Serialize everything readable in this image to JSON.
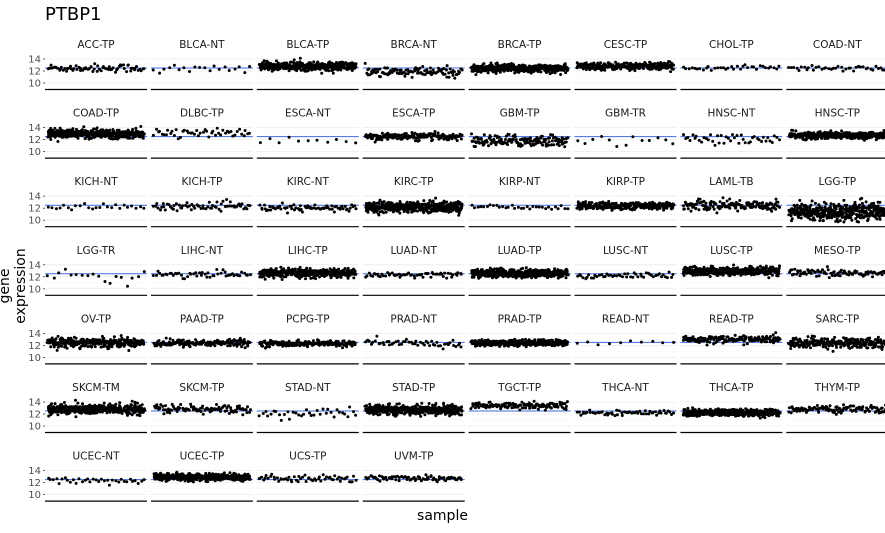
{
  "chart_data": {
    "type": "scatter",
    "title": "PTBP1",
    "xlabel": "sample",
    "ylabel": "gene expression",
    "y_ticks": [
      "10",
      "12",
      "14"
    ],
    "ylim": [
      9.5,
      14.5
    ],
    "reference_line_color": "#4169e1",
    "point_color": "#000000",
    "panels": [
      {
        "name": "ACC-TP",
        "mean": 12.5,
        "spread": 0.35,
        "n": 70
      },
      {
        "name": "BLCA-NT",
        "mean": 12.2,
        "spread": 0.5,
        "n": 20
      },
      {
        "name": "BLCA-TP",
        "mean": 12.8,
        "spread": 0.35,
        "n": 400
      },
      {
        "name": "BRCA-NT",
        "mean": 11.8,
        "spread": 0.45,
        "n": 110
      },
      {
        "name": "BRCA-TP",
        "mean": 12.4,
        "spread": 0.35,
        "n": 1000
      },
      {
        "name": "CESC-TP",
        "mean": 12.8,
        "spread": 0.3,
        "n": 300
      },
      {
        "name": "CHOL-TP",
        "mean": 12.6,
        "spread": 0.25,
        "n": 35
      },
      {
        "name": "COAD-NT",
        "mean": 12.5,
        "spread": 0.25,
        "n": 40
      },
      {
        "name": "COAD-TP",
        "mean": 13.0,
        "spread": 0.35,
        "n": 450
      },
      {
        "name": "DLBC-TP",
        "mean": 13.1,
        "spread": 0.3,
        "n": 48
      },
      {
        "name": "ESCA-NT",
        "mean": 11.8,
        "spread": 0.35,
        "n": 11
      },
      {
        "name": "ESCA-TP",
        "mean": 12.5,
        "spread": 0.3,
        "n": 180
      },
      {
        "name": "GBM-TP",
        "mean": 11.8,
        "spread": 0.5,
        "n": 160
      },
      {
        "name": "GBM-TR",
        "mean": 11.8,
        "spread": 0.5,
        "n": 13
      },
      {
        "name": "HNSC-NT",
        "mean": 12.1,
        "spread": 0.4,
        "n": 44
      },
      {
        "name": "HNSC-TP",
        "mean": 12.7,
        "spread": 0.3,
        "n": 500
      },
      {
        "name": "KICH-NT",
        "mean": 12.2,
        "spread": 0.3,
        "n": 25
      },
      {
        "name": "KICH-TP",
        "mean": 12.3,
        "spread": 0.3,
        "n": 66
      },
      {
        "name": "KIRC-NT",
        "mean": 12.0,
        "spread": 0.3,
        "n": 72
      },
      {
        "name": "KIRC-TP",
        "mean": 12.2,
        "spread": 0.45,
        "n": 530
      },
      {
        "name": "KIRP-NT",
        "mean": 12.2,
        "spread": 0.2,
        "n": 32
      },
      {
        "name": "KIRP-TP",
        "mean": 12.4,
        "spread": 0.3,
        "n": 290
      },
      {
        "name": "LAML-TB",
        "mean": 12.5,
        "spread": 0.45,
        "n": 150
      },
      {
        "name": "LGG-TP",
        "mean": 11.4,
        "spread": 0.7,
        "n": 510
      },
      {
        "name": "LGG-TR",
        "mean": 11.9,
        "spread": 0.6,
        "n": 18
      },
      {
        "name": "LIHC-NT",
        "mean": 12.4,
        "spread": 0.3,
        "n": 50
      },
      {
        "name": "LIHC-TP",
        "mean": 12.6,
        "spread": 0.35,
        "n": 370
      },
      {
        "name": "LUAD-NT",
        "mean": 12.3,
        "spread": 0.25,
        "n": 59
      },
      {
        "name": "LUAD-TP",
        "mean": 12.6,
        "spread": 0.35,
        "n": 515
      },
      {
        "name": "LUSC-NT",
        "mean": 12.2,
        "spread": 0.25,
        "n": 50
      },
      {
        "name": "LUSC-TP",
        "mean": 12.9,
        "spread": 0.35,
        "n": 500
      },
      {
        "name": "MESO-TP",
        "mean": 12.6,
        "spread": 0.35,
        "n": 87
      },
      {
        "name": "OV-TP",
        "mean": 12.5,
        "spread": 0.4,
        "n": 300
      },
      {
        "name": "PAAD-TP",
        "mean": 12.4,
        "spread": 0.3,
        "n": 178
      },
      {
        "name": "PCPG-TP",
        "mean": 12.3,
        "spread": 0.25,
        "n": 180
      },
      {
        "name": "PRAD-NT",
        "mean": 12.3,
        "spread": 0.35,
        "n": 52
      },
      {
        "name": "PRAD-TP",
        "mean": 12.4,
        "spread": 0.25,
        "n": 497
      },
      {
        "name": "READ-NT",
        "mean": 12.5,
        "spread": 0.3,
        "n": 10
      },
      {
        "name": "READ-TP",
        "mean": 13.0,
        "spread": 0.3,
        "n": 165
      },
      {
        "name": "SARC-TP",
        "mean": 12.4,
        "spread": 0.45,
        "n": 260
      },
      {
        "name": "SKCM-TM",
        "mean": 12.8,
        "spread": 0.45,
        "n": 360
      },
      {
        "name": "SKCM-TP",
        "mean": 12.8,
        "spread": 0.4,
        "n": 103
      },
      {
        "name": "STAD-NT",
        "mean": 12.0,
        "spread": 0.45,
        "n": 36
      },
      {
        "name": "STAD-TP",
        "mean": 12.7,
        "spread": 0.4,
        "n": 415
      },
      {
        "name": "TGCT-TP",
        "mean": 13.4,
        "spread": 0.3,
        "n": 150
      },
      {
        "name": "THCA-NT",
        "mean": 12.2,
        "spread": 0.2,
        "n": 58
      },
      {
        "name": "THCA-TP",
        "mean": 12.2,
        "spread": 0.3,
        "n": 505
      },
      {
        "name": "THYM-TP",
        "mean": 12.8,
        "spread": 0.3,
        "n": 120
      },
      {
        "name": "UCEC-NT",
        "mean": 12.3,
        "spread": 0.3,
        "n": 35
      },
      {
        "name": "UCEC-TP",
        "mean": 12.9,
        "spread": 0.3,
        "n": 545
      },
      {
        "name": "UCS-TP",
        "mean": 12.6,
        "spread": 0.3,
        "n": 57
      },
      {
        "name": "UVM-TP",
        "mean": 12.8,
        "spread": 0.3,
        "n": 80
      }
    ]
  }
}
